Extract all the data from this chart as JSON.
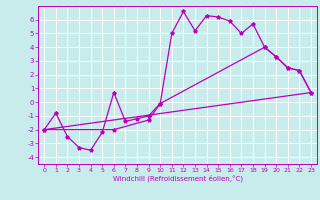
{
  "xlabel": "Windchill (Refroidissement éolien,°C)",
  "bg_color": "#c8ecec",
  "line_color": "#bb00bb",
  "grid_color": "#aadddd",
  "ylim": [
    -4.5,
    7.0
  ],
  "xlim": [
    -0.5,
    23.5
  ],
  "yticks": [
    -4,
    -3,
    -2,
    -1,
    0,
    1,
    2,
    3,
    4,
    5,
    6
  ],
  "xticks": [
    0,
    1,
    2,
    3,
    4,
    5,
    6,
    7,
    8,
    9,
    10,
    11,
    12,
    13,
    14,
    15,
    16,
    17,
    18,
    19,
    20,
    21,
    22,
    23
  ],
  "series": [
    {
      "x": [
        0,
        1,
        2,
        3,
        4,
        5,
        6,
        7,
        8,
        9,
        10,
        11,
        12,
        13,
        14,
        15,
        16,
        17,
        18,
        19,
        20,
        21,
        22,
        23
      ],
      "y": [
        -2.0,
        -0.8,
        -2.5,
        -3.3,
        -3.5,
        -2.2,
        0.7,
        -1.4,
        -1.2,
        -1.0,
        -0.1,
        5.0,
        6.6,
        5.2,
        6.3,
        6.2,
        5.9,
        5.0,
        5.7,
        4.0,
        3.3,
        2.5,
        2.3,
        0.7
      ],
      "has_markers": true
    },
    {
      "x": [
        0,
        6,
        9,
        10,
        19,
        20,
        21,
        22,
        23
      ],
      "y": [
        -2.0,
        -2.0,
        -1.3,
        -0.1,
        4.0,
        3.3,
        2.5,
        2.3,
        0.7
      ],
      "has_markers": true
    },
    {
      "x": [
        0,
        23
      ],
      "y": [
        -2.0,
        0.7
      ],
      "has_markers": false
    }
  ]
}
